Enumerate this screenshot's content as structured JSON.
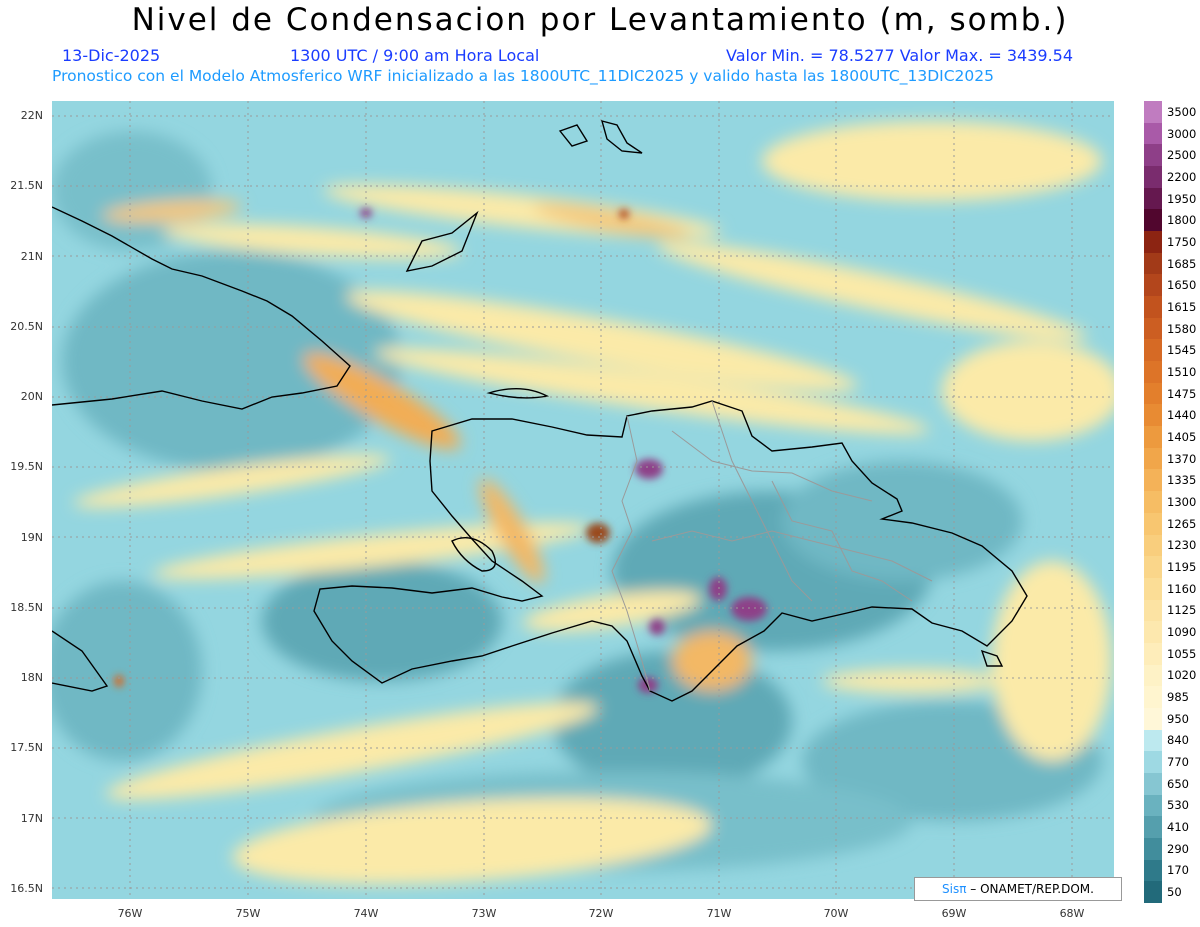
{
  "title": "Nivel de Condensacion por Levantamiento (m, somb.)",
  "date": "13-Dic-2025",
  "time": "1300 UTC / 9:00 am Hora Local",
  "minmax": "Valor Min. = 78.5277  Valor Max. = 3439.54",
  "forecast": "Pronostico con el Modelo Atmosferico WRF inicializado a las 1800UTC_11DIC2025 y valido hasta las  1800UTC_13DIC2025",
  "credit_sis": "Sisπ",
  "credit_org": "– ONAMET/REP.DOM.",
  "lat_labels": [
    "22N",
    "21.5N",
    "21N",
    "20.5N",
    "20N",
    "19.5N",
    "19N",
    "18.5N",
    "18N",
    "17.5N",
    "17N",
    "16.5N"
  ],
  "lon_labels": [
    "76W",
    "75W",
    "74W",
    "73W",
    "72W",
    "71W",
    "70W",
    "69W",
    "68W"
  ],
  "colorbar": {
    "labels": [
      "3500",
      "3000",
      "2500",
      "2200",
      "1950",
      "1800",
      "1750",
      "1685",
      "1650",
      "1615",
      "1580",
      "1545",
      "1510",
      "1475",
      "1440",
      "1405",
      "1370",
      "1335",
      "1300",
      "1265",
      "1230",
      "1195",
      "1160",
      "1125",
      "1090",
      "1055",
      "1020",
      "985",
      "950",
      "840",
      "770",
      "650",
      "530",
      "410",
      "290",
      "170",
      "50"
    ],
    "colors": [
      "#c07cc0",
      "#a95aa8",
      "#8e3f88",
      "#7a2c6e",
      "#65184f",
      "#51062e",
      "#8c2412",
      "#a23a18",
      "#b3461c",
      "#c2531e",
      "#cc5e22",
      "#d66a25",
      "#dd7428",
      "#e37f2c",
      "#e88b33",
      "#ed9a3e",
      "#f1a64a",
      "#f4b258",
      "#f6bd64",
      "#f8c670",
      "#f9ce7d",
      "#fad68a",
      "#fbdd96",
      "#fce3a3",
      "#fde8ae",
      "#feedba",
      "#fef2c6",
      "#fff5cf",
      "#fff7d8",
      "#bde9ef",
      "#9ed9e3",
      "#86c6d2",
      "#6ab2bf",
      "#559fad",
      "#418d9c",
      "#2f7a8a",
      "#226a7a"
    ]
  }
}
